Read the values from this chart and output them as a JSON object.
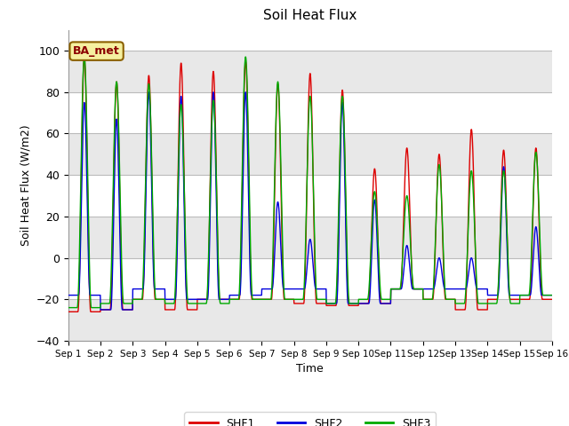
{
  "title": "Soil Heat Flux",
  "ylabel": "Soil Heat Flux (W/m2)",
  "xlabel": "Time",
  "ylim": [
    -40,
    110
  ],
  "yticks": [
    -40,
    -20,
    0,
    20,
    40,
    60,
    80,
    100
  ],
  "fig_bg_color": "#ffffff",
  "plot_bg_color": "#ffffff",
  "band_colors": [
    "#e8e8e8",
    "#ffffff"
  ],
  "grid_color": "#cccccc",
  "colors": {
    "SHF1": "#dd0000",
    "SHF2": "#0000dd",
    "SHF3": "#00aa00"
  },
  "annotation": "BA_met",
  "n_days": 15,
  "shf1_peaks": [
    97,
    85,
    88,
    94,
    90,
    95,
    84,
    89,
    81,
    43,
    53,
    50,
    62,
    52,
    53
  ],
  "shf1_troughs": [
    -26,
    -25,
    -20,
    -25,
    -20,
    -20,
    -20,
    -22,
    -23,
    -22,
    -15,
    -20,
    -25,
    -20,
    -20
  ],
  "shf2_peaks": [
    75,
    67,
    80,
    78,
    80,
    80,
    27,
    9,
    75,
    28,
    6,
    0,
    0,
    44,
    15
  ],
  "shf2_troughs": [
    -18,
    -25,
    -15,
    -20,
    -20,
    -18,
    -15,
    -15,
    -22,
    -22,
    -15,
    -15,
    -15,
    -18,
    -18
  ],
  "shf3_peaks": [
    97,
    85,
    84,
    74,
    76,
    97,
    85,
    78,
    78,
    32,
    30,
    45,
    42,
    42,
    51
  ],
  "shf3_troughs": [
    -24,
    -22,
    -20,
    -22,
    -22,
    -20,
    -20,
    -20,
    -22,
    -20,
    -15,
    -20,
    -22,
    -22,
    -18
  ]
}
